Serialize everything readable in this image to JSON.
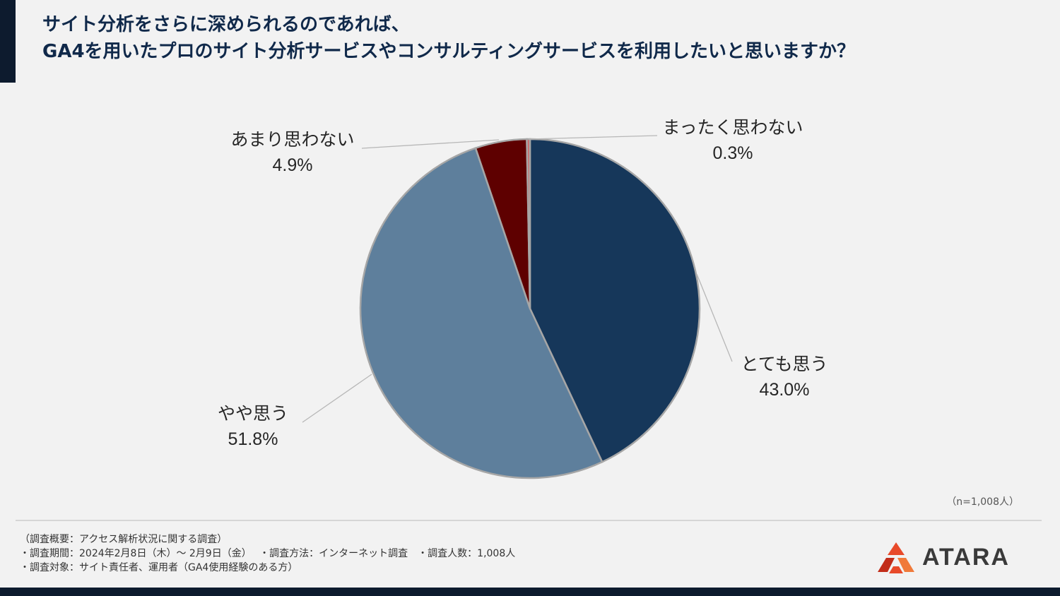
{
  "title": {
    "line1": "サイト分析をさらに深められるのであれば、",
    "line2": "GA4を用いたプロのサイト分析サービスやコンサルティングサービスを利用したいと思いますか？"
  },
  "chart_data": {
    "type": "pie",
    "categories": [
      "とても思う",
      "やや思う",
      "あまり思わない",
      "まったく思わない"
    ],
    "values": [
      43.0,
      51.8,
      4.9,
      0.3
    ],
    "value_labels": [
      "43.0%",
      "51.8%",
      "4.9%",
      "0.3%"
    ],
    "colors": [
      "#16375a",
      "#5e7f9c",
      "#5e0000",
      "#c96b6b"
    ],
    "start": "12 o'clock, clockwise",
    "legend": "none, labels next to slices with leader lines"
  },
  "sample_note": "（n=1,008人）",
  "footer": {
    "overview": "（調査概要：アクセス解析状況に関する調査）",
    "line2": "・調査期間：2024年2月8日（木）～ 2月9日（金）　 ・調査方法：インターネット調査　・調査人数：1,008人",
    "line3": "・調査対象：サイト責任者、運用者（GA4使用経験のある方）"
  },
  "logo": {
    "text": "ATARA",
    "colors": [
      "#e84a2a",
      "#c22d1a",
      "#f07a3a"
    ]
  },
  "theme": {
    "navy": "#0d1b2e",
    "title_color": "#10294a",
    "background": "#f2f2f2"
  }
}
